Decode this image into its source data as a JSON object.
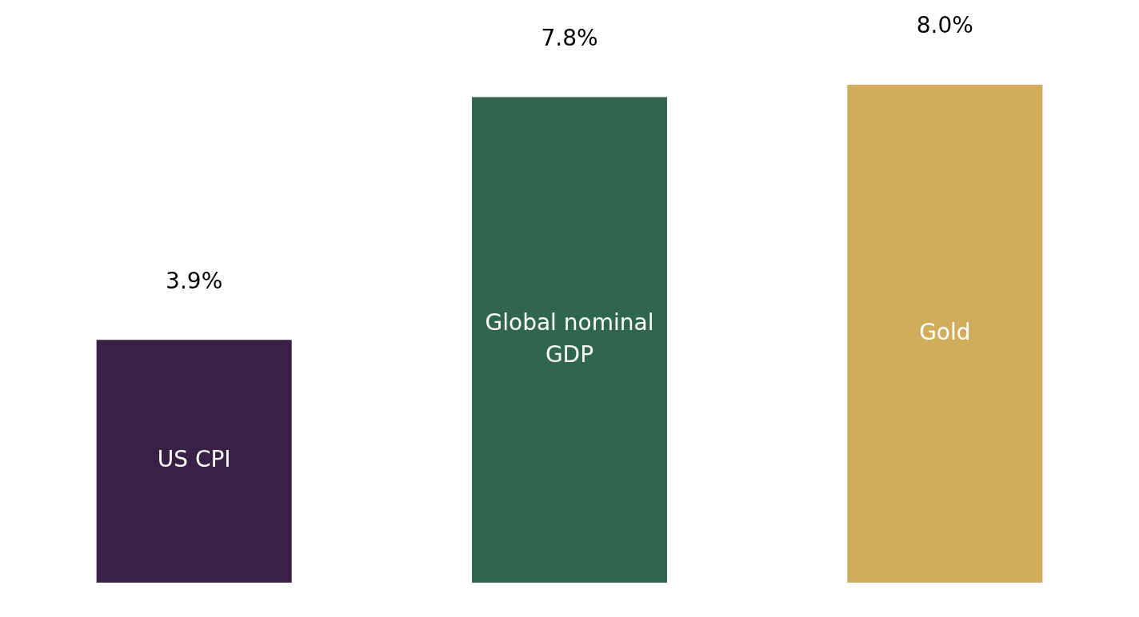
{
  "chart_data": {
    "type": "bar",
    "categories": [
      "US CPI",
      "Global nominal GDP",
      "Gold"
    ],
    "values": [
      3.9,
      7.8,
      8.0
    ],
    "colors": [
      "#3a1f47",
      "#2e664e",
      "#d1ac5a"
    ],
    "value_labels": [
      "3.9%",
      "7.8%",
      "8.0%"
    ],
    "tick_labels": false,
    "grid": false,
    "legend": false
  }
}
